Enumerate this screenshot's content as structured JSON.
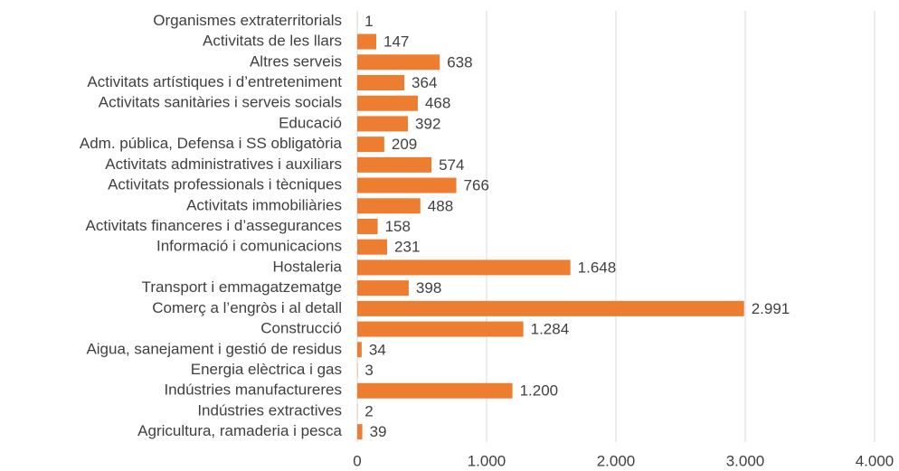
{
  "chart_data": {
    "type": "barh",
    "categories": [
      "Organismes extraterritorials",
      "Activitats de les llars",
      "Altres serveis",
      "Activitats artístiques i d’entreteniment",
      "Activitats sanitàries i serveis socials",
      "Educació",
      "Adm. pública, Defensa i SS obligatòria",
      "Activitats administratives i auxiliars",
      "Activitats professionals i tècniques",
      "Activitats immobiliàries",
      "Activitats financeres i d’assegurances",
      "Informació i comunicacions",
      "Hostaleria",
      "Transport i emmagatzematge",
      "Comerç a l’engròs i al detall",
      "Construcció",
      "Aigua, sanejament i gestió de residus",
      "Energia elèctrica i gas",
      "Indústries manufactureres",
      "Indústries extractives",
      "Agricultura, ramaderia i pesca"
    ],
    "values": [
      1,
      147,
      638,
      364,
      468,
      392,
      209,
      574,
      766,
      488,
      158,
      231,
      1648,
      398,
      2991,
      1284,
      34,
      3,
      1200,
      2,
      39
    ],
    "value_labels": [
      "1",
      "147",
      "638",
      "364",
      "468",
      "392",
      "209",
      "574",
      "766",
      "488",
      "158",
      "231",
      "1.648",
      "398",
      "2.991",
      "1.284",
      "34",
      "3",
      "1.200",
      "2",
      "39"
    ],
    "color": "#ed7d31",
    "xlim": [
      0,
      4000
    ],
    "xticks": [
      0,
      {
        "value": 1000,
        "label": "1.000"
      },
      {
        "value": 2000,
        "label": "2.000"
      },
      {
        "value": 3000,
        "label": "3.000"
      },
      {
        "value": 4000,
        "label": "4.000"
      }
    ],
    "grid": true
  }
}
